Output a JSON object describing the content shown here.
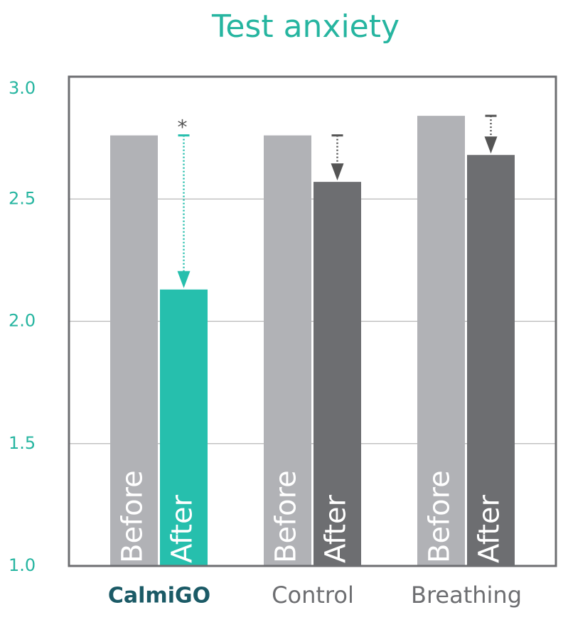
{
  "chart_data": {
    "type": "bar",
    "title": "Test anxiety",
    "categories": [
      "CalmiGO",
      "Control",
      "Breathing"
    ],
    "series": [
      {
        "name": "Before",
        "color": "#b1b2b6",
        "values": [
          2.76,
          2.76,
          2.84
        ]
      },
      {
        "name": "After",
        "colors": [
          "#26bfad",
          "#6d6e71",
          "#6d6e71"
        ],
        "values": [
          2.13,
          2.57,
          2.68
        ]
      }
    ],
    "annotation": "*",
    "ylim": [
      1.0,
      3.0
    ],
    "yticks": [
      {
        "value": 1.0,
        "label": "1.0"
      },
      {
        "value": 1.5,
        "label": "1.5"
      },
      {
        "value": 2.0,
        "label": "2.0"
      },
      {
        "value": 2.5,
        "label": "2.5"
      },
      {
        "value": 3.0,
        "label": "3.0"
      }
    ],
    "grid": true
  }
}
